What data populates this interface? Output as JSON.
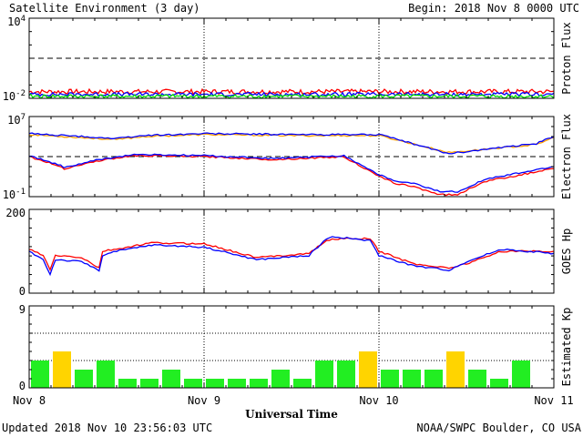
{
  "header": {
    "title": "Satellite Environment (3 day)",
    "begin": "Begin:  2018 Nov 8 0000 UTC"
  },
  "footer": {
    "updated": "Updated 2018 Nov 10 23:56:03 UTC",
    "credit": "NOAA/SWPC Boulder, CO USA"
  },
  "colors": {
    "red": "#ff0000",
    "blue": "#0000ff",
    "green": "#00dd00",
    "orange": "#ffa000",
    "kp_green": "#22ee22",
    "kp_yellow": "#ffd400"
  },
  "chart_data": [
    {
      "type": "line",
      "ylabel": "Proton Flux",
      "y_scale": "log",
      "ylim_exp": [
        -2,
        4
      ],
      "tick_labels": [
        {
          "exp": 4,
          "base": "10",
          "sup": "4"
        },
        {
          "exp": -2,
          "base": "10",
          "sup": "-2"
        }
      ],
      "threshold_exp": 1,
      "series": [
        {
          "color": "red",
          "level_exp": -1.5,
          "noise": 0.18
        },
        {
          "color": "blue",
          "level_exp": -1.7,
          "noise": 0.14
        },
        {
          "color": "green",
          "level_exp": -1.85,
          "noise": 0.14
        }
      ]
    },
    {
      "type": "line",
      "ylabel": "Electron Flux",
      "y_scale": "log",
      "ylim_exp": [
        -1,
        7
      ],
      "tick_labels": [
        {
          "exp": 7,
          "base": "10",
          "sup": "7"
        },
        {
          "exp": -1,
          "base": "10",
          "sup": "-1"
        }
      ],
      "threshold_exp": 3,
      "series": [
        {
          "color": "orange",
          "x": [
            0,
            0.5,
            0.65,
            1.0,
            1.5,
            2.0,
            2.4,
            2.9,
            3.0
          ],
          "y": [
            5.2,
            4.7,
            5.0,
            5.2,
            5.1,
            5.1,
            3.4,
            4.2,
            4.9
          ]
        },
        {
          "color": "blue",
          "x": [
            0,
            0.5,
            0.65,
            1.0,
            1.5,
            2.0,
            2.4,
            2.9,
            3.0
          ],
          "y": [
            5.3,
            4.8,
            5.1,
            5.3,
            5.2,
            5.2,
            3.3,
            4.3,
            5.0
          ]
        },
        {
          "color": "red",
          "x": [
            0,
            0.18,
            0.2,
            0.4,
            0.6,
            1.0,
            1.4,
            1.8,
            2.0,
            2.1,
            2.2,
            2.35,
            2.45,
            2.6,
            3.0
          ],
          "y": [
            3.0,
            2.0,
            1.8,
            2.6,
            3.1,
            3.0,
            2.7,
            3.0,
            1.0,
            0.3,
            0.0,
            -0.8,
            -0.8,
            0.5,
            1.8
          ]
        },
        {
          "color": "blue",
          "x": [
            0,
            0.18,
            0.2,
            0.4,
            0.6,
            1.0,
            1.4,
            1.8,
            2.0,
            2.1,
            2.2,
            2.35,
            2.45,
            2.6,
            3.0
          ],
          "y": [
            3.1,
            2.1,
            1.9,
            2.7,
            3.2,
            3.1,
            2.8,
            3.1,
            1.2,
            0.5,
            0.3,
            -0.5,
            -0.5,
            0.7,
            2.0
          ]
        }
      ]
    },
    {
      "type": "line",
      "ylabel": "GOES Hp",
      "ylim": [
        0,
        200
      ],
      "tick_labels": [
        200,
        0
      ],
      "series": [
        {
          "color": "red",
          "x": [
            0,
            0.08,
            0.12,
            0.15,
            0.3,
            0.4,
            0.42,
            0.5,
            0.7,
            1.0,
            1.3,
            1.6,
            1.7,
            1.75,
            1.95,
            2.0,
            2.2,
            2.4,
            2.5,
            2.7,
            3.0
          ],
          "y": [
            105,
            90,
            55,
            90,
            85,
            60,
            100,
            105,
            120,
            118,
            85,
            95,
            125,
            130,
            130,
            100,
            70,
            60,
            70,
            100,
            100
          ]
        },
        {
          "color": "blue",
          "x": [
            0,
            0.08,
            0.12,
            0.15,
            0.3,
            0.4,
            0.42,
            0.5,
            0.7,
            1.0,
            1.3,
            1.6,
            1.7,
            1.75,
            1.95,
            2.0,
            2.2,
            2.4,
            2.5,
            2.7,
            3.0
          ],
          "y": [
            100,
            80,
            45,
            80,
            75,
            55,
            90,
            100,
            115,
            110,
            80,
            90,
            130,
            135,
            125,
            90,
            65,
            55,
            75,
            105,
            95
          ]
        }
      ]
    },
    {
      "type": "bar",
      "ylabel": "Estimated Kp",
      "ylim": [
        0,
        9
      ],
      "tick_labels": [
        9,
        0
      ],
      "dotted_levels": [
        3,
        6
      ],
      "values": [
        3,
        4,
        2,
        3,
        1,
        1,
        2,
        1,
        1,
        1,
        1,
        2,
        1,
        3,
        3,
        4,
        2,
        2,
        2,
        4,
        2,
        1,
        3,
        0
      ],
      "colors": [
        "kp_green",
        "kp_yellow",
        "kp_green",
        "kp_green",
        "kp_green",
        "kp_green",
        "kp_green",
        "kp_green",
        "kp_green",
        "kp_green",
        "kp_green",
        "kp_green",
        "kp_green",
        "kp_green",
        "kp_green",
        "kp_yellow",
        "kp_green",
        "kp_green",
        "kp_green",
        "kp_yellow",
        "kp_green",
        "kp_green",
        "kp_green",
        "kp_green"
      ]
    }
  ],
  "xaxis": {
    "labels": [
      "Nov 8",
      "Nov 9",
      "Nov 10",
      "Nov 11"
    ],
    "title": "Universal Time"
  }
}
